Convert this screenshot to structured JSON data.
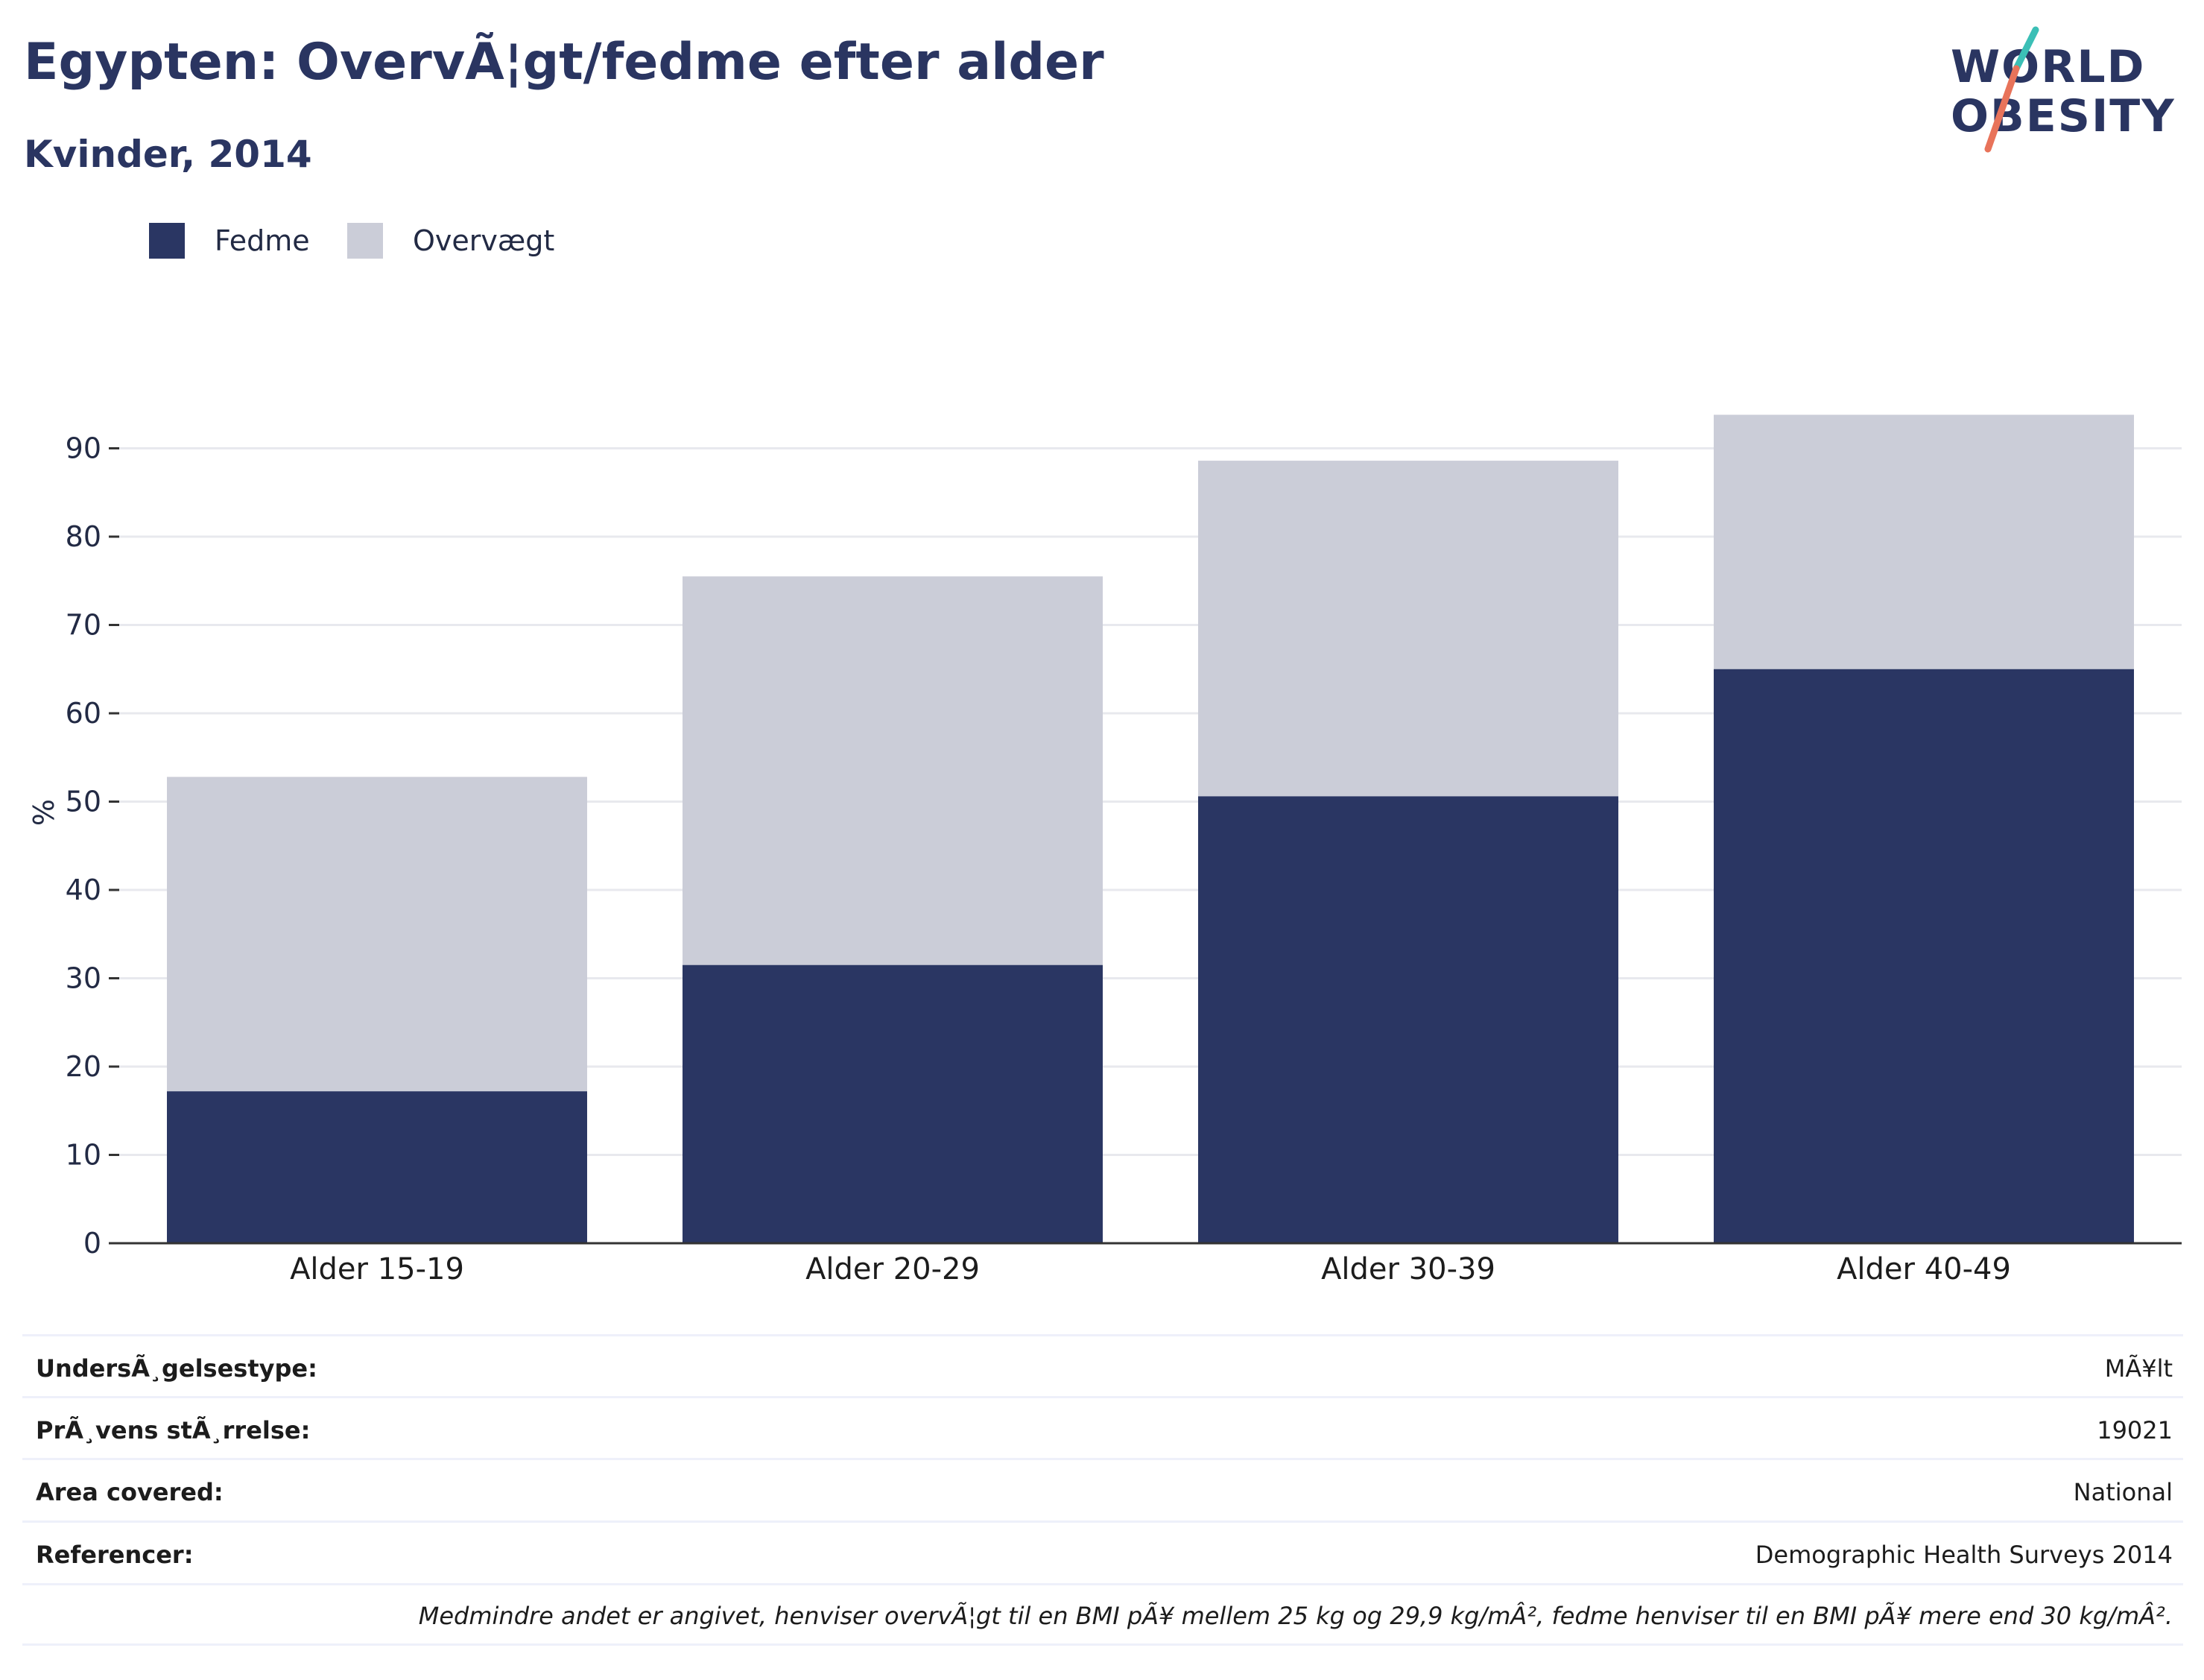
{
  "header": {
    "title": "Egypten: OvervÃ¦gt/fedme efter alder",
    "subtitle": "Kvinder, 2014"
  },
  "logo": {
    "line1": "WORLD",
    "line2": "OBESITY",
    "icon": "world-obesity-logo"
  },
  "colors": {
    "fedme": "#2a3663",
    "overvaegt": "#cbcdd8",
    "grid": "#e8e9ee",
    "axis": "#333333",
    "logo_teal": "#3bbfb6",
    "logo_coral": "#e8735a"
  },
  "chart_data": {
    "type": "bar",
    "stacked": true,
    "categories": [
      "Alder 15-19",
      "Alder 20-29",
      "Alder 30-39",
      "Alder 40-49"
    ],
    "series": [
      {
        "name": "Fedme",
        "values": [
          17.2,
          31.5,
          50.6,
          65.0
        ]
      },
      {
        "name": "Overvægt",
        "values": [
          35.6,
          44.0,
          38.0,
          28.8
        ]
      }
    ],
    "title": "Egypten: OvervÃ¦gt/fedme efter alder",
    "subtitle": "Kvinder, 2014",
    "ylabel": "%",
    "ylim": [
      0,
      97
    ],
    "yticks": [
      0,
      10,
      20,
      30,
      40,
      50,
      60,
      70,
      80,
      90
    ],
    "grid": true,
    "legend": "top-left"
  },
  "info": {
    "rows": [
      {
        "key": "UndersÃ¸gelsestype:",
        "value": "MÃ¥lt"
      },
      {
        "key": "PrÃ¸vens stÃ¸rrelse:",
        "value": "19021"
      },
      {
        "key": "Area covered:",
        "value": "National"
      },
      {
        "key": "Referencer:",
        "value": "Demographic Health Surveys 2014"
      }
    ],
    "note": "Medmindre andet er angivet, henviser overvÃ¦gt til en BMI pÃ¥ mellem 25 kg og 29,9 kg/mÂ², fedme henviser til en BMI pÃ¥ mere end 30 kg/mÂ²."
  }
}
